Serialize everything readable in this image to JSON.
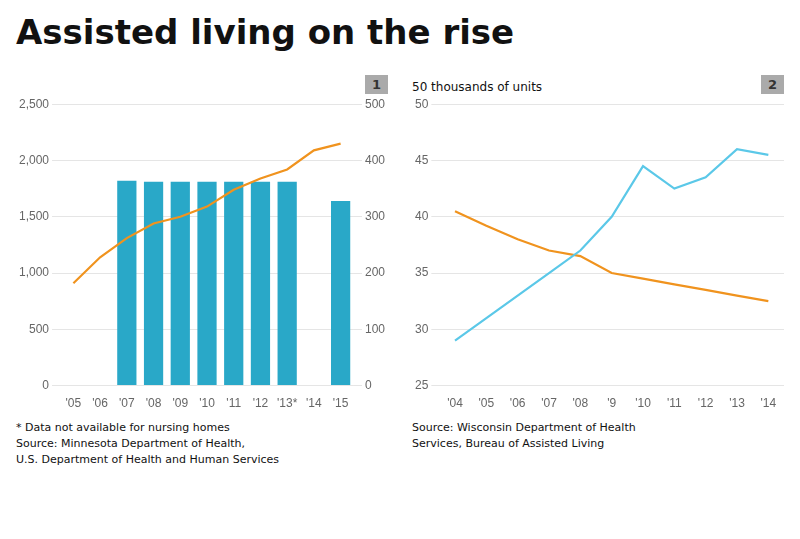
{
  "title": "Assisted living on the rise",
  "chart_data": [
    {
      "type": "bar",
      "subtitle": "1",
      "categories": [
        "'05",
        "'06",
        "'07",
        "'08",
        "'09",
        "'10",
        "'11",
        "'12",
        "'13*",
        "'14",
        "'15"
      ],
      "series": [
        {
          "type": "bar",
          "color": "#29a8c8",
          "values": [
            null,
            null,
            1820,
            1810,
            1810,
            1810,
            1810,
            1810,
            1810,
            null,
            1640
          ]
        },
        {
          "type": "line",
          "axis": "y2",
          "color": "#f0931e",
          "values": [
            182,
            228,
            262,
            288,
            300,
            318,
            348,
            368,
            384,
            418,
            430
          ]
        }
      ],
      "ylim": [
        0,
        2500
      ],
      "yticks": [
        0,
        500,
        {
          "value": 1000,
          "label": "1,000"
        },
        {
          "value": 1500,
          "label": "1,500"
        },
        {
          "value": 2000,
          "label": "2,000"
        },
        {
          "value": 2500,
          "label": "2,500"
        }
      ],
      "y2lim": [
        0,
        500
      ],
      "y2ticks": [
        0,
        100,
        200,
        300,
        400,
        500
      ],
      "grid": true,
      "annotations": [
        "* Data not available for nursing homes\nSource: Minnesota Department of Health,\nU.S. Department of Health and Human Services"
      ]
    },
    {
      "type": "line",
      "subtitle": "2",
      "ylabel": "50 thousands of units",
      "categories": [
        "'04",
        "'05",
        "'06",
        "'07",
        "'08",
        "'9",
        "'10",
        "'11",
        "'12",
        "'13",
        "'14"
      ],
      "series": [
        {
          "color": "#5bc8e8",
          "values": [
            29,
            31,
            33,
            35,
            37,
            40,
            44.5,
            42.5,
            43.5,
            46,
            45.5
          ]
        },
        {
          "color": "#f0931e",
          "values": [
            40.5,
            39.2,
            38.0,
            37.0,
            36.5,
            35.0,
            34.5,
            34.0,
            33.5,
            33.0,
            32.5
          ]
        }
      ],
      "ylim": [
        25,
        50
      ],
      "yticks": [
        25,
        30,
        35,
        40,
        45,
        50
      ],
      "grid": true,
      "annotations": [
        "Source: Wisconsin Department of Health\nServices, Bureau of Assisted Living"
      ]
    }
  ]
}
